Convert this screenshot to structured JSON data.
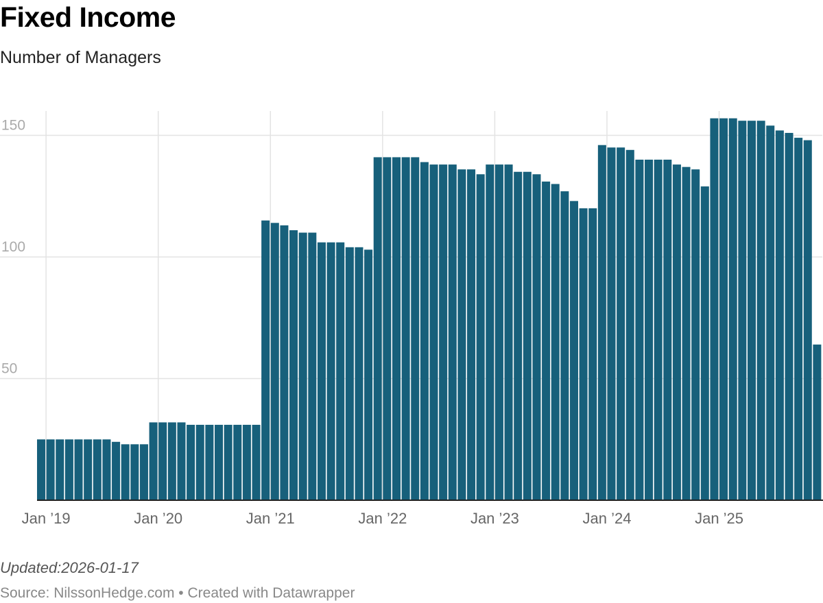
{
  "header": {
    "title": "Fixed Income",
    "subtitle": "Number of Managers"
  },
  "footer": {
    "updated_label": "Updated:",
    "updated_date": "2026-01-17",
    "source_label": "Source: NilssonHedge.com",
    "separator": "•",
    "credit": "Created with Datawrapper"
  },
  "colors": {
    "bar": "#17607b",
    "grid": "#e3e3e3",
    "baseline": "#222222",
    "tick_label": "#aaaaaa",
    "x_label": "#666666"
  },
  "chart_data": {
    "type": "bar",
    "title": "Fixed Income",
    "subtitle": "Number of Managers",
    "xlabel": "",
    "ylabel": "",
    "ylim": [
      0,
      160
    ],
    "y_ticks": [
      50,
      100,
      150
    ],
    "grid": true,
    "x_tick_labels": [
      "Jan ’19",
      "Jan ’20",
      "Jan ’21",
      "Jan ’22",
      "Jan ’23",
      "Jan ’24",
      "Jan ’25"
    ],
    "start_month": "2018-12",
    "series": [
      {
        "values": [
          25,
          25,
          25,
          25,
          25,
          25,
          25,
          25,
          24,
          23,
          23,
          23,
          32,
          32,
          32,
          32,
          31,
          31,
          31,
          31,
          31,
          31,
          31,
          31,
          115,
          114,
          113,
          111,
          110,
          110,
          106,
          106,
          106,
          104,
          104,
          103,
          141,
          141,
          141,
          141,
          141,
          139,
          138,
          138,
          138,
          136,
          136,
          134,
          138,
          138,
          138,
          135,
          135,
          134,
          131,
          130,
          127,
          123,
          120,
          120,
          146,
          145,
          145,
          144,
          140,
          140,
          140,
          140,
          138,
          137,
          136,
          129,
          157,
          157,
          157,
          156,
          156,
          156,
          154,
          152,
          151,
          149,
          148,
          64
        ]
      }
    ]
  }
}
